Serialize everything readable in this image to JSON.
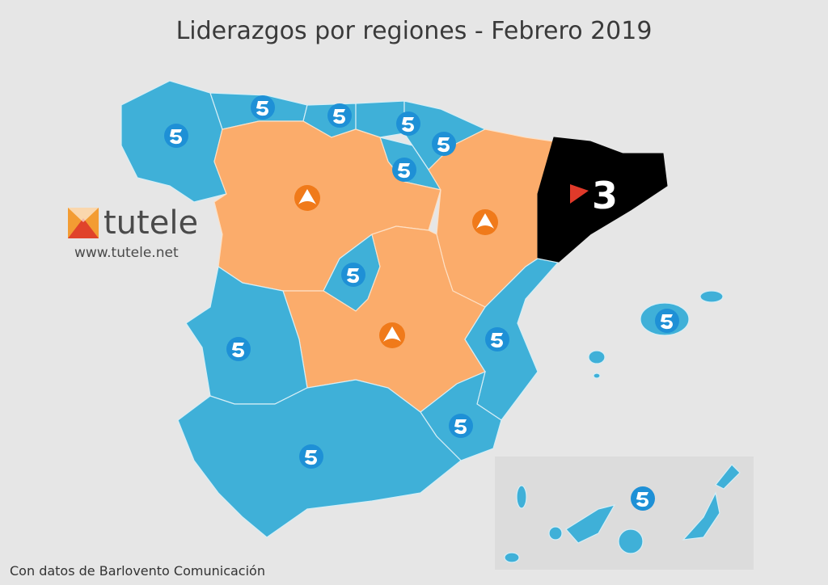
{
  "header": {
    "title": "Liderazgos por regiones - Febrero 2019"
  },
  "logo": {
    "name": "tutele",
    "url": "www.tutele.net"
  },
  "map": {
    "catalonia_label": "3"
  },
  "footer": {
    "source": "Con datos de Barlovento Comunicación"
  }
}
